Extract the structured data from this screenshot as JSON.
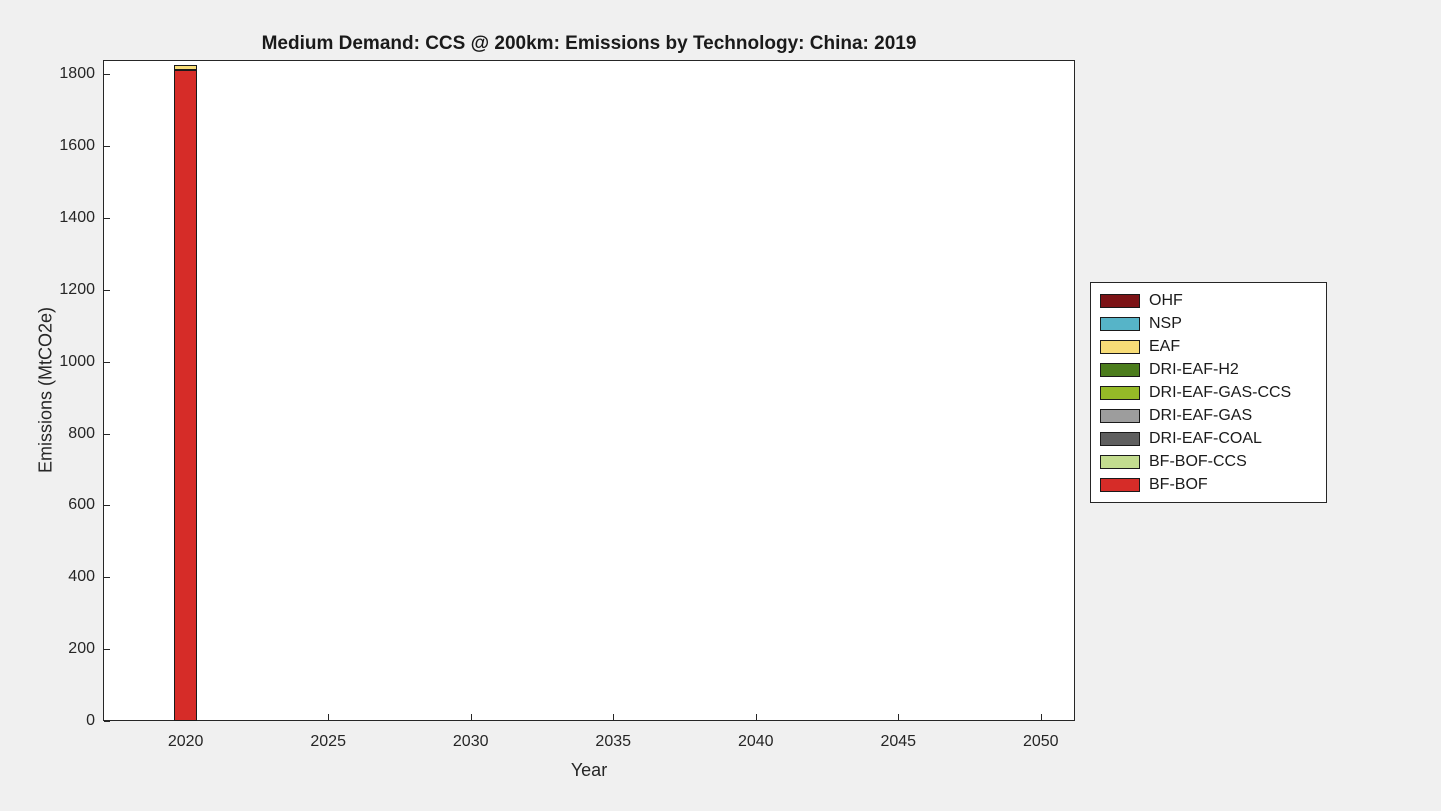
{
  "figure": {
    "background_color": "#f0f0f0",
    "plot_background_color": "#ffffff",
    "axis_color": "#262626",
    "text_color": "#1a1a1a"
  },
  "chart_data": {
    "type": "bar",
    "stacked": true,
    "title": "Medium Demand: CCS @ 200km: Emissions by Technology: China: 2019",
    "xlabel": "Year",
    "ylabel": "Emissions (MtCO2e)",
    "x": [
      2020
    ],
    "series": [
      {
        "name": "BF-BOF",
        "color": "#d62c28",
        "values": [
          1812
        ]
      },
      {
        "name": "BF-BOF-CCS",
        "color": "#c3dc8f",
        "values": [
          0
        ]
      },
      {
        "name": "DRI-EAF-COAL",
        "color": "#5f5f5f",
        "values": [
          0
        ]
      },
      {
        "name": "DRI-EAF-GAS",
        "color": "#9d9d9d",
        "values": [
          0
        ]
      },
      {
        "name": "DRI-EAF-GAS-CCS",
        "color": "#95ba27",
        "values": [
          0
        ]
      },
      {
        "name": "DRI-EAF-H2",
        "color": "#4c7d1d",
        "values": [
          0
        ]
      },
      {
        "name": "EAF",
        "color": "#f7dc77",
        "values": [
          15
        ]
      },
      {
        "name": "NSP",
        "color": "#56b4c8",
        "values": [
          0
        ]
      },
      {
        "name": "OHF",
        "color": "#7c1316",
        "values": [
          0
        ]
      }
    ],
    "bar_width": 0.8,
    "xlim": [
      2017.1,
      2051.2
    ],
    "ylim": [
      0,
      1840
    ],
    "x_ticks": [
      2020,
      2025,
      2030,
      2035,
      2040,
      2045,
      2050
    ],
    "y_ticks": [
      0,
      200,
      400,
      600,
      800,
      1000,
      1200,
      1400,
      1600,
      1800
    ],
    "grid": false,
    "legend": {
      "position": "right-outside",
      "entries_top_to_bottom": [
        "OHF",
        "NSP",
        "EAF",
        "DRI-EAF-H2",
        "DRI-EAF-GAS-CCS",
        "DRI-EAF-GAS",
        "DRI-EAF-COAL",
        "BF-BOF-CCS",
        "BF-BOF"
      ]
    }
  }
}
